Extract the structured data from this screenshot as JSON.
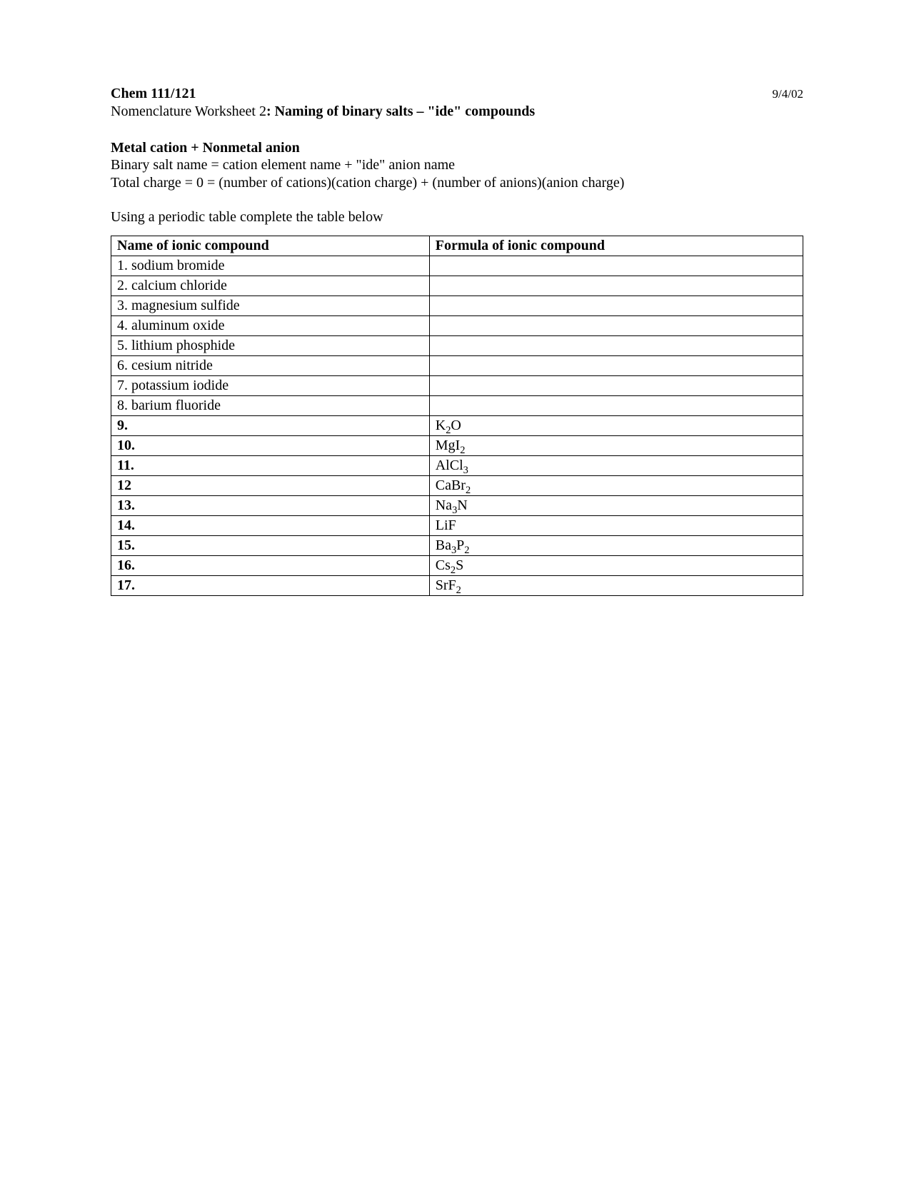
{
  "header": {
    "course": "Chem 111/121",
    "date": "9/4/02",
    "subtitle_prefix": "Nomenclature Worksheet 2",
    "subtitle_bold": ":  Naming of binary salts – \"ide\" compounds"
  },
  "section": {
    "heading": "Metal cation  + Nonmetal anion",
    "line1": "Binary salt name = cation element name  +  \"ide\" anion name",
    "line2": "Total charge = 0 =  (number of cations)(cation charge)  + (number of anions)(anion charge)"
  },
  "instruction": "Using a periodic table complete the table below",
  "table": {
    "columns": [
      "Name of ionic compound",
      "Formula of ionic compound"
    ],
    "rows": [
      {
        "num": "1.",
        "bold": false,
        "name": "sodium bromide",
        "formula_parts": []
      },
      {
        "num": "2.",
        "bold": false,
        "name": "calcium chloride",
        "formula_parts": []
      },
      {
        "num": "3.",
        "bold": false,
        "name": "magnesium sulfide",
        "formula_parts": []
      },
      {
        "num": "4.",
        "bold": false,
        "name": "aluminum oxide",
        "formula_parts": []
      },
      {
        "num": "5.",
        "bold": false,
        "name": "lithium phosphide",
        "formula_parts": []
      },
      {
        "num": "6.",
        "bold": false,
        "name": "cesium nitride",
        "formula_parts": []
      },
      {
        "num": "7.",
        "bold": false,
        "name": "potassium iodide",
        "formula_parts": []
      },
      {
        "num": "8.",
        "bold": false,
        "name": "barium fluoride",
        "formula_parts": []
      },
      {
        "num": "9.",
        "bold": true,
        "name": "",
        "formula_parts": [
          {
            "t": "K"
          },
          {
            "s": "2"
          },
          {
            "t": "O"
          }
        ]
      },
      {
        "num": "10.",
        "bold": true,
        "name": "",
        "formula_parts": [
          {
            "t": "MgI"
          },
          {
            "s": "2"
          }
        ]
      },
      {
        "num": "11.",
        "bold": true,
        "name": "",
        "formula_parts": [
          {
            "t": "AlCl"
          },
          {
            "s": "3"
          }
        ]
      },
      {
        "num": "12",
        "bold": true,
        "name": "",
        "formula_parts": [
          {
            "t": "CaBr"
          },
          {
            "s": "2"
          }
        ]
      },
      {
        "num": "13.",
        "bold": true,
        "name": "",
        "formula_parts": [
          {
            "t": "Na"
          },
          {
            "s": "3"
          },
          {
            "t": "N"
          }
        ]
      },
      {
        "num": "14.",
        "bold": true,
        "name": "",
        "formula_parts": [
          {
            "t": "LiF"
          }
        ]
      },
      {
        "num": "15.",
        "bold": true,
        "name": "",
        "formula_parts": [
          {
            "t": "Ba"
          },
          {
            "s": "3"
          },
          {
            "t": "P"
          },
          {
            "s": "2"
          }
        ]
      },
      {
        "num": "16.",
        "bold": true,
        "name": "",
        "formula_parts": [
          {
            "t": "Cs"
          },
          {
            "s": "2"
          },
          {
            "t": "S"
          }
        ]
      },
      {
        "num": "17.",
        "bold": true,
        "name": "",
        "formula_parts": [
          {
            "t": "SrF"
          },
          {
            "s": "2"
          }
        ]
      }
    ]
  }
}
